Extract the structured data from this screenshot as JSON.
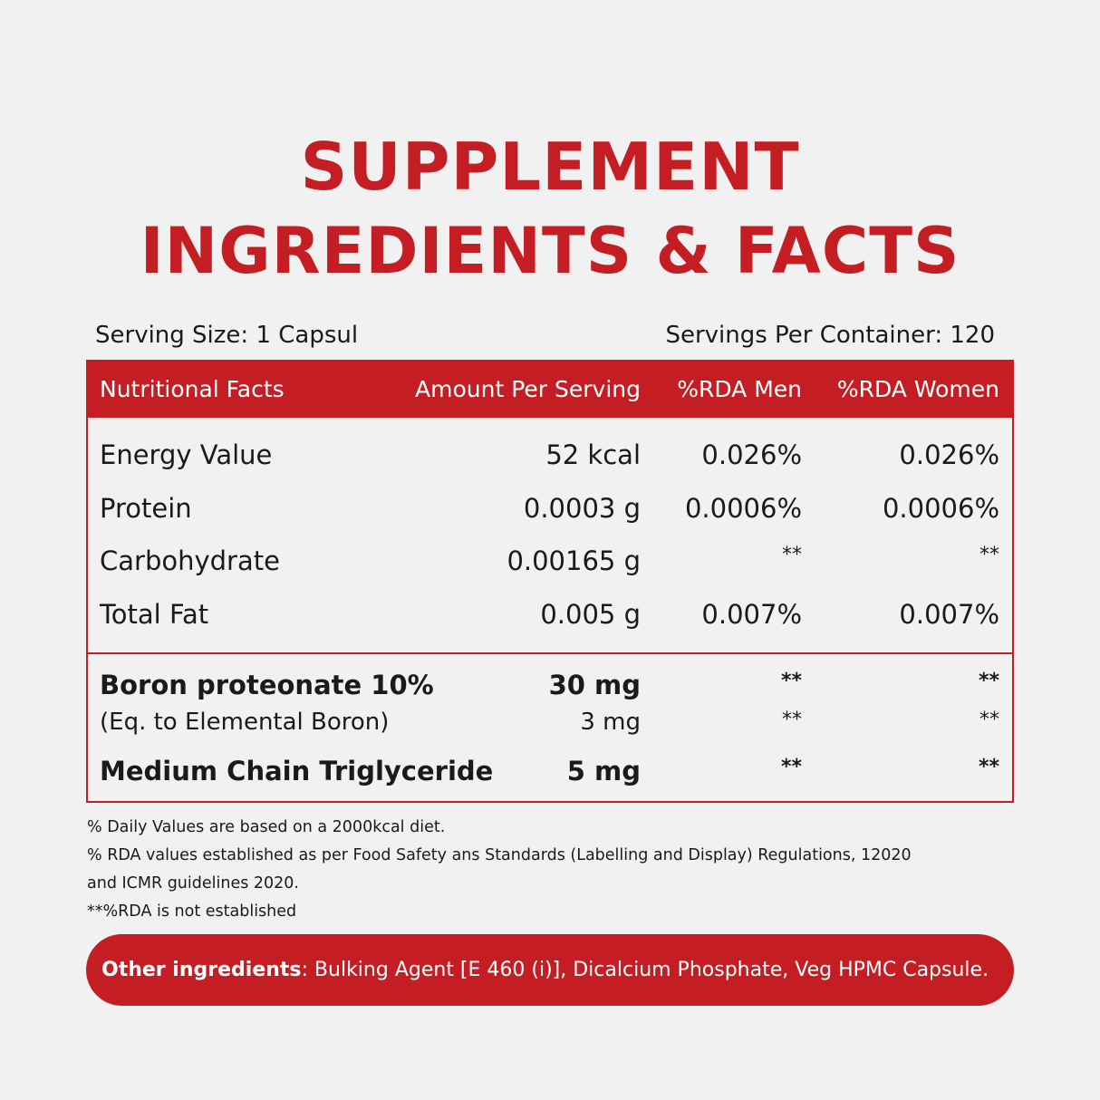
{
  "title": {
    "line1": "SUPPLEMENT",
    "line2": "INGREDIENTS & FACTS"
  },
  "serving_size": "Serving Size: 1 Capsul",
  "servings_per_container": "Servings Per Container: 120",
  "table": {
    "headers": [
      "Nutritional Facts",
      "Amount Per Serving",
      "%RDA Men",
      "%RDA Women"
    ],
    "nutrition_rows": [
      {
        "name": "Energy Value",
        "amount": "52 kcal",
        "rda_men": "0.026%",
        "rda_women": "0.026%"
      },
      {
        "name": "Protein",
        "amount": "0.0003 g",
        "rda_men": "0.0006%",
        "rda_women": "0.0006%"
      },
      {
        "name": "Carbohydrate",
        "amount": "0.00165 g",
        "rda_men": "**",
        "rda_women": "**"
      },
      {
        "name": "Total Fat",
        "amount": "0.005 g",
        "rda_men": "0.007%",
        "rda_women": "0.007%"
      }
    ],
    "ingredient_rows": [
      {
        "name": "Boron proteonate 10%",
        "amount": "30 mg",
        "rda_men": "**",
        "rda_women": "**"
      },
      {
        "name": "(Eq. to Elemental Boron)",
        "amount": "3 mg",
        "rda_men": "**",
        "rda_women": "**"
      },
      {
        "name": "Medium Chain Triglyceride",
        "amount": "5 mg",
        "rda_men": "**",
        "rda_women": "**"
      }
    ]
  },
  "notes": [
    "% Daily Values are based on a 2000kcal diet.",
    "% RDA values established as per Food Safety ans Standards (Labelling and Display) Regulations, 12020",
    "and ICMR guidelines 2020.",
    "**%RDA is not established"
  ],
  "other_ingredients": {
    "label": "Other ingredients",
    "text": ": Bulking Agent [E 460 (i)], Dicalcium Phosphate, Veg HPMC Capsule."
  },
  "colors": {
    "accent": "#c41e24",
    "background": "#f1f1f1",
    "text": "#1a1a1a"
  }
}
